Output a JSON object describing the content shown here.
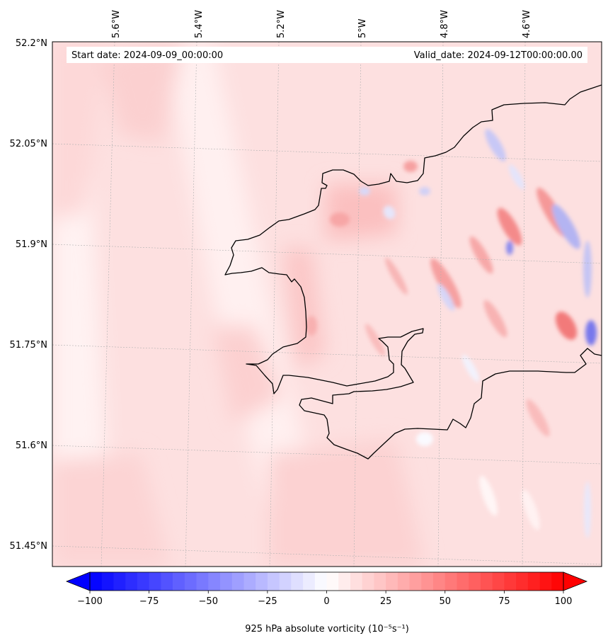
{
  "map": {
    "start_label": "Start date: 2024-09-09_00:00:00",
    "valid_label": "Valid_date: 2024-09-12T00:00:00.00",
    "lon_labels": [
      "5.6°W",
      "5.4°W",
      "5.2°W",
      "5°W",
      "4.8°W",
      "4.6°W"
    ],
    "lat_labels": [
      "52.2°N",
      "52.05°N",
      "51.9°N",
      "51.75°N",
      "51.6°N",
      "51.45°N"
    ],
    "extent": {
      "lon": [
        -5.75,
        -4.43
      ],
      "lat": [
        51.42,
        52.2
      ]
    },
    "background_color": "#fde0e0",
    "coastline_color": "#000000",
    "gridlines": true
  },
  "colorbar": {
    "label": "925 hPa absolute vorticity (10⁻⁵s⁻¹)",
    "ticks": [
      "−100",
      "−75",
      "−50",
      "−25",
      "0",
      "25",
      "50",
      "75",
      "100"
    ],
    "tick_values": [
      -100,
      -75,
      -50,
      -25,
      0,
      25,
      50,
      75,
      100
    ],
    "range": [
      -100,
      100
    ],
    "colormap": "bwr",
    "extend": "both",
    "levels": 41
  }
}
